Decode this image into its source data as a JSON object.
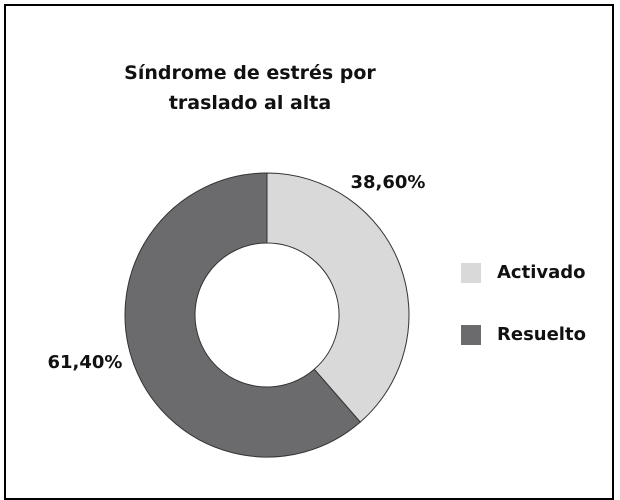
{
  "chart_data": {
    "type": "donut",
    "title": "Síndrome de estrés por traslado al alta",
    "categories": [
      "Activado",
      "Resuelto"
    ],
    "values": [
      38.6,
      61.4
    ],
    "value_labels": [
      "38,60%",
      "61,40%"
    ],
    "colors": [
      "#d9d9d9",
      "#6b6b6e"
    ],
    "legend": "right"
  }
}
